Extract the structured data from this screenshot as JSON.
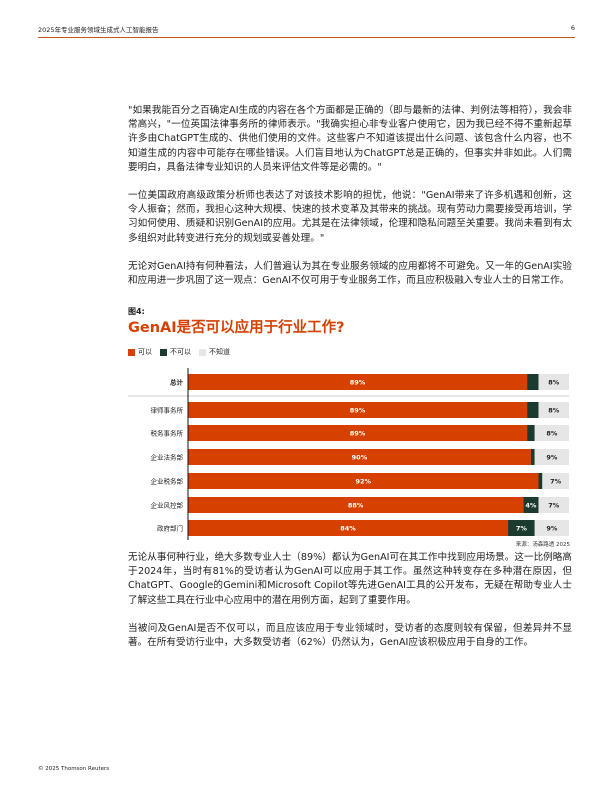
{
  "header": {
    "title": "2025年专业服务领域生成式人工智能报告",
    "page_number": "6"
  },
  "paragraphs_top": [
    "\"如果我能百分之百确定AI生成的内容在各个方面都是正确的（即与最新的法律、判例法等相符），我会非常高兴，\"一位英国法律事务所的律师表示。\"我确实担心非专业客户使用它，因为我已经不得不重新起草许多由ChatGPT生成的、供他们使用的文件。这些客户不知道该提出什么问题、该包含什么内容，也不知道生成的内容中可能存在哪些错误。人们盲目地认为ChatGPT总是正确的，但事实并非如此。人们需要明白，具备法律专业知识的人员来评估文件等是必需的。\"",
    "一位美国政府高级政策分析师也表达了对该技术影响的担忧，他说：\"GenAI带来了许多机遇和创新，这令人振奋；然而，我担心这种大规模、快速的技术变革及其带来的挑战。现有劳动力需要接受再培训，学习如何使用、质疑和识别GenAI的应用。尤其是在法律领域，伦理和隐私问题至关重要。我尚未看到有太多组织对此转变进行充分的规划或妥善处理。\"",
    "无论对GenAI持有何种看法，人们普遍认为其在专业服务领域的应用都将不可避免。又一年的GenAI实验和应用进一步巩固了这一观点：GenAI不仅可用于专业服务工作，而且应积极融入专业人士的日常工作。"
  ],
  "figure": {
    "label": "图4:",
    "title": "GenAI是否可以应用于行业工作?",
    "source": "来源：汤森路透 2025"
  },
  "chart_data": {
    "type": "bar",
    "orientation": "horizontal",
    "stacked": true,
    "categories": [
      "总计",
      "律师事务所",
      "税务事务所",
      "企业法务部",
      "企业税务部",
      "企业风控部",
      "政府部门"
    ],
    "series": [
      {
        "name": "可以",
        "color": "#d64000",
        "values": [
          89,
          89,
          89,
          90,
          92,
          88,
          84
        ],
        "labels": [
          "89%",
          "89%",
          "89%",
          "90%",
          "92%",
          "88%",
          "84%"
        ]
      },
      {
        "name": "不可以",
        "color": "#1d3a2e",
        "values": [
          3,
          3,
          2,
          1,
          1,
          4,
          7
        ],
        "labels": [
          "",
          "",
          "",
          "",
          "",
          "4%",
          "7%"
        ]
      },
      {
        "name": "不知道",
        "color": "#e6e6e6",
        "values": [
          8,
          8,
          8,
          9,
          7,
          7,
          9
        ],
        "labels": [
          "8%",
          "8%",
          "8%",
          "9%",
          "7%",
          "7%",
          "9%"
        ]
      }
    ],
    "xlim": [
      0,
      100
    ],
    "legend": "top-left",
    "grid": false
  },
  "paragraphs_bottom": [
    "无论从事何种行业，绝大多数专业人士（89%）都认为GenAI可在其工作中找到应用场景。这一比例略高于2024年，当时有81%的受访者认为GenAI可以应用于其工作。虽然这种转变存在多种潜在原因，但ChatGPT、Google的Gemini和Microsoft Copilot等先进GenAI工具的公开发布，无疑在帮助专业人士了解这些工具在行业中心应用中的潜在用例方面，起到了重要作用。",
    "当被问及GenAI是否不仅可以，而且应该应用于专业领域时，受访者的态度则较有保留，但差异并不显著。在所有受访行业中，大多数受访者（62%）仍然认为，GenAI应该积极应用于自身的工作。"
  ],
  "footer": {
    "copyright": "© 2025 Thomson Reuters"
  }
}
